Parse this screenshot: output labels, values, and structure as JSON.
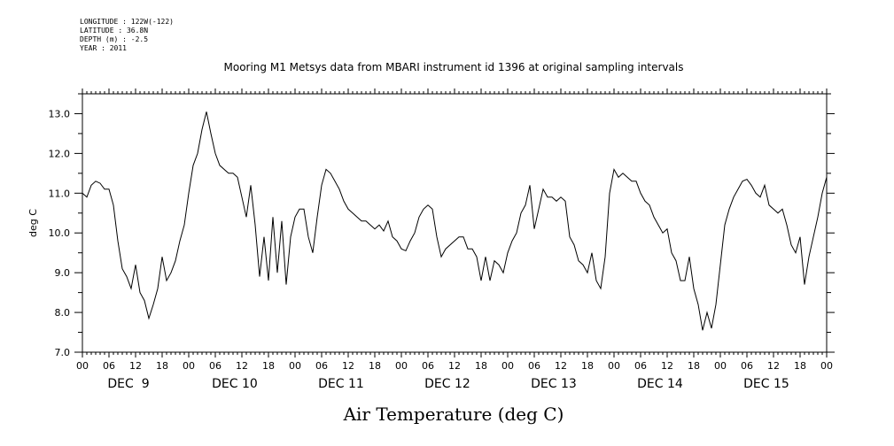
{
  "header": {
    "longitude": "LONGITUDE : 122W(-122)",
    "latitude": "LATITUDE : 36.8N",
    "depth": "DEPTH (m) : -2.5",
    "year": "YEAR : 2011"
  },
  "chart_data": {
    "type": "line",
    "title": "Mooring M1 Metsys data from MBARI instrument id 1396 at original sampling intervals",
    "xlabel": "Air Temperature (deg C)",
    "ylabel": "deg C",
    "ylim": [
      7.0,
      13.5
    ],
    "xlim_hours": [
      0,
      168
    ],
    "y_ticks": [
      "7.0",
      "8.0",
      "9.0",
      "10.0",
      "11.0",
      "12.0",
      "13.0"
    ],
    "y_tick_values": [
      7,
      8,
      9,
      10,
      11,
      12,
      13
    ],
    "hour_tick_labels": [
      "00",
      "06",
      "12",
      "18",
      "00",
      "06",
      "12",
      "18",
      "00",
      "06",
      "12",
      "18",
      "00",
      "06",
      "12",
      "18",
      "00",
      "06",
      "12",
      "18",
      "00",
      "06",
      "12",
      "18",
      "00",
      "06",
      "12",
      "18",
      "00"
    ],
    "day_labels": [
      "DEC  9",
      "DEC 10",
      "DEC 11",
      "DEC 12",
      "DEC 13",
      "DEC 14",
      "DEC 15"
    ],
    "grid": false,
    "series": [
      {
        "points": [
          [
            0,
            11.0
          ],
          [
            1,
            10.9
          ],
          [
            2,
            11.2
          ],
          [
            3,
            11.3
          ],
          [
            4,
            11.25
          ],
          [
            5,
            11.1
          ],
          [
            6,
            11.1
          ],
          [
            7,
            10.7
          ],
          [
            8,
            9.8
          ],
          [
            9,
            9.1
          ],
          [
            10,
            8.9
          ],
          [
            11,
            8.6
          ],
          [
            12,
            9.2
          ],
          [
            13,
            8.5
          ],
          [
            14,
            8.3
          ],
          [
            15,
            7.85
          ],
          [
            16,
            8.2
          ],
          [
            17,
            8.6
          ],
          [
            18,
            9.4
          ],
          [
            19,
            8.8
          ],
          [
            20,
            9.0
          ],
          [
            21,
            9.3
          ],
          [
            22,
            9.8
          ],
          [
            23,
            10.2
          ],
          [
            24,
            11.0
          ],
          [
            25,
            11.7
          ],
          [
            26,
            12.0
          ],
          [
            27,
            12.6
          ],
          [
            28,
            13.05
          ],
          [
            29,
            12.5
          ],
          [
            30,
            12.0
          ],
          [
            31,
            11.7
          ],
          [
            32,
            11.6
          ],
          [
            33,
            11.5
          ],
          [
            34,
            11.5
          ],
          [
            35,
            11.4
          ],
          [
            36,
            10.9
          ],
          [
            37,
            10.4
          ],
          [
            38,
            11.2
          ],
          [
            39,
            10.2
          ],
          [
            40,
            8.9
          ],
          [
            41,
            9.9
          ],
          [
            42,
            8.8
          ],
          [
            43,
            10.4
          ],
          [
            44,
            9.0
          ],
          [
            45,
            10.3
          ],
          [
            46,
            8.7
          ],
          [
            47,
            9.9
          ],
          [
            48,
            10.4
          ],
          [
            49,
            10.6
          ],
          [
            50,
            10.6
          ],
          [
            51,
            9.9
          ],
          [
            52,
            9.5
          ],
          [
            53,
            10.4
          ],
          [
            54,
            11.2
          ],
          [
            55,
            11.6
          ],
          [
            56,
            11.5
          ],
          [
            57,
            11.3
          ],
          [
            58,
            11.1
          ],
          [
            59,
            10.8
          ],
          [
            60,
            10.6
          ],
          [
            61,
            10.5
          ],
          [
            62,
            10.4
          ],
          [
            63,
            10.3
          ],
          [
            64,
            10.3
          ],
          [
            65,
            10.2
          ],
          [
            66,
            10.1
          ],
          [
            67,
            10.2
          ],
          [
            68,
            10.05
          ],
          [
            69,
            10.3
          ],
          [
            70,
            9.9
          ],
          [
            71,
            9.8
          ],
          [
            72,
            9.6
          ],
          [
            73,
            9.55
          ],
          [
            74,
            9.8
          ],
          [
            75,
            10.0
          ],
          [
            76,
            10.4
          ],
          [
            77,
            10.6
          ],
          [
            78,
            10.7
          ],
          [
            79,
            10.6
          ],
          [
            80,
            9.9
          ],
          [
            81,
            9.4
          ],
          [
            82,
            9.6
          ],
          [
            83,
            9.7
          ],
          [
            84,
            9.8
          ],
          [
            85,
            9.9
          ],
          [
            86,
            9.9
          ],
          [
            87,
            9.6
          ],
          [
            88,
            9.6
          ],
          [
            89,
            9.4
          ],
          [
            90,
            8.8
          ],
          [
            91,
            9.4
          ],
          [
            92,
            8.8
          ],
          [
            93,
            9.3
          ],
          [
            94,
            9.2
          ],
          [
            95,
            9.0
          ],
          [
            96,
            9.5
          ],
          [
            97,
            9.8
          ],
          [
            98,
            10.0
          ],
          [
            99,
            10.5
          ],
          [
            100,
            10.7
          ],
          [
            101,
            11.2
          ],
          [
            102,
            10.1
          ],
          [
            103,
            10.6
          ],
          [
            104,
            11.1
          ],
          [
            105,
            10.9
          ],
          [
            106,
            10.9
          ],
          [
            107,
            10.8
          ],
          [
            108,
            10.9
          ],
          [
            109,
            10.8
          ],
          [
            110,
            9.9
          ],
          [
            111,
            9.7
          ],
          [
            112,
            9.3
          ],
          [
            113,
            9.2
          ],
          [
            114,
            9.0
          ],
          [
            115,
            9.5
          ],
          [
            116,
            8.8
          ],
          [
            117,
            8.6
          ],
          [
            118,
            9.4
          ],
          [
            119,
            11.0
          ],
          [
            120,
            11.6
          ],
          [
            121,
            11.4
          ],
          [
            122,
            11.5
          ],
          [
            123,
            11.4
          ],
          [
            124,
            11.3
          ],
          [
            125,
            11.3
          ],
          [
            126,
            11.0
          ],
          [
            127,
            10.8
          ],
          [
            128,
            10.7
          ],
          [
            129,
            10.4
          ],
          [
            130,
            10.2
          ],
          [
            131,
            10.0
          ],
          [
            132,
            10.1
          ],
          [
            133,
            9.5
          ],
          [
            134,
            9.3
          ],
          [
            135,
            8.8
          ],
          [
            136,
            8.8
          ],
          [
            137,
            9.4
          ],
          [
            138,
            8.6
          ],
          [
            139,
            8.2
          ],
          [
            140,
            7.55
          ],
          [
            141,
            8.0
          ],
          [
            142,
            7.6
          ],
          [
            143,
            8.2
          ],
          [
            144,
            9.2
          ],
          [
            145,
            10.2
          ],
          [
            146,
            10.6
          ],
          [
            147,
            10.9
          ],
          [
            148,
            11.1
          ],
          [
            149,
            11.3
          ],
          [
            150,
            11.35
          ],
          [
            151,
            11.2
          ],
          [
            152,
            11.0
          ],
          [
            153,
            10.9
          ],
          [
            154,
            11.2
          ],
          [
            155,
            10.7
          ],
          [
            156,
            10.6
          ],
          [
            157,
            10.5
          ],
          [
            158,
            10.6
          ],
          [
            159,
            10.2
          ],
          [
            160,
            9.7
          ],
          [
            161,
            9.5
          ],
          [
            162,
            9.9
          ],
          [
            163,
            8.7
          ],
          [
            164,
            9.4
          ],
          [
            165,
            9.9
          ],
          [
            166,
            10.4
          ],
          [
            167,
            11.0
          ],
          [
            168,
            11.4
          ]
        ]
      }
    ]
  }
}
